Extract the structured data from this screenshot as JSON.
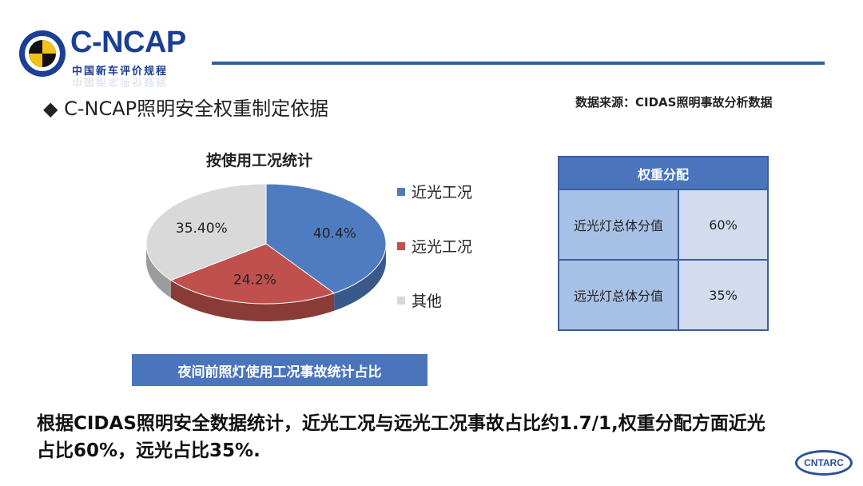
{
  "logo": {
    "brand": "C-NCAP",
    "subtitle": "中国新车评价规程"
  },
  "section": {
    "bullet": "◆",
    "title": "C-NCAP照明安全权重制定依据"
  },
  "source_note": "数据来源：CIDAS照明事故分析数据",
  "chart_data": {
    "type": "pie",
    "title": "按使用工况统计",
    "categories": [
      "近光工况",
      "远光工况",
      "其他"
    ],
    "values": [
      40.4,
      24.2,
      35.4
    ],
    "labels": [
      "40.4%",
      "24.2%",
      "35.40%"
    ],
    "colors": [
      "#4f7cc0",
      "#c0504d",
      "#d9d9d9"
    ],
    "legend_position": "right"
  },
  "chart_caption": "夜间前照灯使用工况事故统计占比",
  "weights_table": {
    "header": "权重分配",
    "rows": [
      {
        "label": "近光灯总体分值",
        "value": "60%"
      },
      {
        "label": "远光灯总体分值",
        "value": "35%"
      }
    ]
  },
  "summary_text": "根据CIDAS照明安全数据统计，近光工况与远光工况事故占比约1.7/1,权重分配方面近光占比60%，远光占比35%.",
  "footer_logo": "CNTARC"
}
